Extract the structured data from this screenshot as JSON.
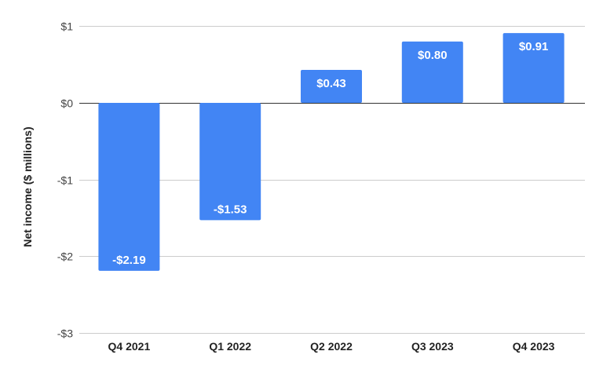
{
  "chart_data": {
    "type": "bar",
    "title": "",
    "xlabel": "",
    "ylabel": "Net income ($ millions)",
    "categories": [
      "Q4 2021",
      "Q1 2022",
      "Q2 2022",
      "Q3 2023",
      "Q4 2023"
    ],
    "values": [
      -2.19,
      -1.53,
      0.43,
      0.8,
      0.91
    ],
    "data_labels": [
      "-$2.19",
      "-$1.53",
      "$0.43",
      "$0.80",
      "$0.91"
    ],
    "ylim": [
      -3,
      1
    ],
    "yticks": [
      1,
      0,
      -1,
      -2,
      -3
    ],
    "ytick_labels": [
      "$1",
      "$0",
      "-$1",
      "-$2",
      "-$3"
    ],
    "grid": true,
    "legend": "none",
    "bar_color": "#4285f4"
  }
}
